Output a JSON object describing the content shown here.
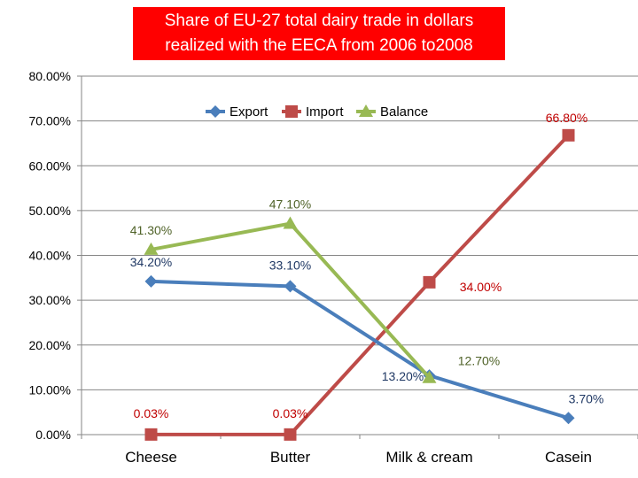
{
  "chart_data": {
    "type": "line",
    "title_line1": "Share of EU-27 total dairy trade in dollars",
    "title_line2": "realized with the EECA from 2006 to2008",
    "categories": [
      "Cheese",
      "Butter",
      "Milk & cream",
      "Casein"
    ],
    "ylim": [
      0,
      80
    ],
    "yticks": [
      "0.00%",
      "10.00%",
      "20.00%",
      "30.00%",
      "40.00%",
      "50.00%",
      "60.00%",
      "70.00%",
      "80.00%"
    ],
    "grid": true,
    "legend_position": "top-center",
    "series": [
      {
        "name": "Export",
        "color": "#4a7ebb",
        "marker": "diamond",
        "values": [
          34.2,
          33.1,
          13.2,
          3.7
        ],
        "labels": [
          "34.20%",
          "33.10%",
          "13.20%",
          "3.70%"
        ],
        "label_color": "#1f3864"
      },
      {
        "name": "Import",
        "color": "#be4b48",
        "marker": "square",
        "values": [
          0.03,
          0.03,
          34.0,
          66.8
        ],
        "labels": [
          "0.03%",
          "0.03%",
          "34.00%",
          "66.80%"
        ],
        "label_color": "#c00000"
      },
      {
        "name": "Balance",
        "color": "#98b954",
        "marker": "triangle",
        "values": [
          41.3,
          47.1,
          12.7,
          null
        ],
        "labels": [
          "41.30%",
          "47.10%",
          "12.70%",
          null
        ],
        "label_color": "#4f6228"
      }
    ]
  }
}
